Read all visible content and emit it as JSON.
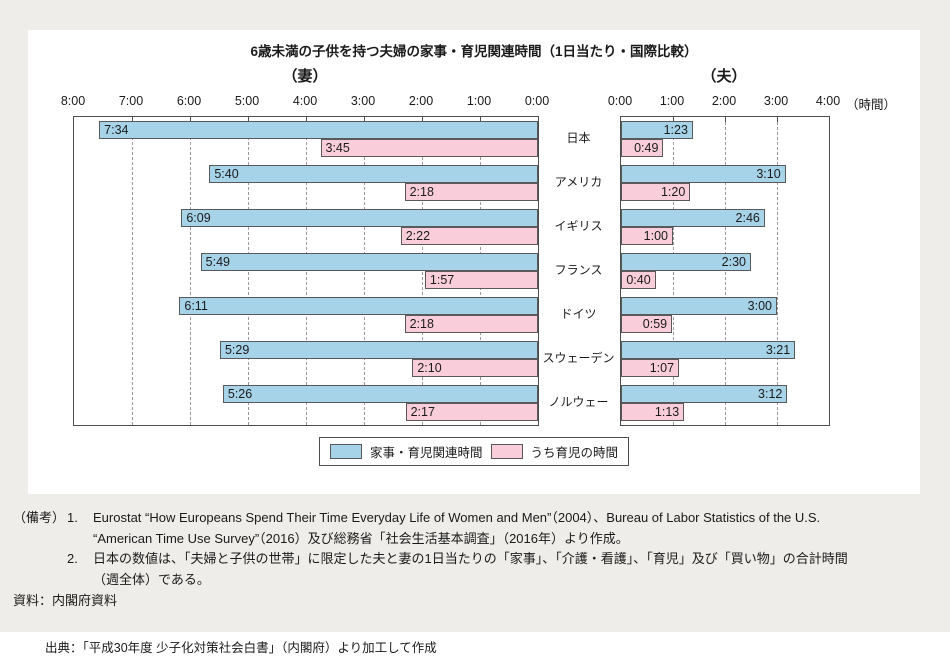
{
  "chart_data": {
    "type": "bar",
    "orientation": "horizontal",
    "title": "6歳未満の子供を持つ夫婦の家事・育児関連時間（1日当たり・国際比較）",
    "categories": [
      "日本",
      "アメリカ",
      "イギリス",
      "フランス",
      "ドイツ",
      "スウェーデン",
      "ノルウェー"
    ],
    "unit_note": "（時間）",
    "legend": [
      {
        "name": "家事・育児関連時間",
        "color": "#A7D3E9"
      },
      {
        "name": "うち育児の時間",
        "color": "#F9CEDA"
      }
    ],
    "legend_position": "bottom-center",
    "grid": "dashed-vertical-hour-lines",
    "panels": [
      {
        "id": "wife",
        "label": "（妻）",
        "direction": "right-to-left",
        "axis_ticks": [
          "8:00",
          "7:00",
          "6:00",
          "5:00",
          "4:00",
          "3:00",
          "2:00",
          "1:00",
          "0:00"
        ],
        "axis_max_hours": 8,
        "series": [
          {
            "name": "家事・育児関連時間",
            "values": [
              "7:34",
              "5:40",
              "6:09",
              "5:49",
              "6:11",
              "5:29",
              "5:26"
            ]
          },
          {
            "name": "うち育児の時間",
            "values": [
              "3:45",
              "2:18",
              "2:22",
              "1:57",
              "2:18",
              "2:10",
              "2:17"
            ]
          }
        ]
      },
      {
        "id": "husband",
        "label": "（夫）",
        "direction": "left-to-right",
        "axis_ticks": [
          "0:00",
          "1:00",
          "2:00",
          "3:00",
          "4:00"
        ],
        "axis_max_hours": 4,
        "series": [
          {
            "name": "家事・育児関連時間",
            "values": [
              "1:23",
              "3:10",
              "2:46",
              "2:30",
              "3:00",
              "3:21",
              "3:12"
            ]
          },
          {
            "name": "うち育児の時間",
            "values": [
              "0:49",
              "1:20",
              "1:00",
              "0:40",
              "0:59",
              "1:07",
              "1:13"
            ]
          }
        ]
      }
    ]
  },
  "colors": {
    "total_bar": "#A7D3E9",
    "childcare_bar": "#F9CEDA",
    "bar_border": "#595959",
    "plot_border": "#4D4D4D",
    "page_background": "#EFEDE9",
    "card_background": "#FFFFFF"
  },
  "notes": {
    "prefix": "（備考）",
    "items": [
      {
        "num": "1.",
        "lines": [
          "Eurostat “How Europeans Spend Their Time Everyday Life of Women and Men”（2004）、Bureau of Labor Statistics of the U.S.",
          "“American Time Use Survey”（2016）及び総務省「社会生活基本調査」（2016年）より作成。"
        ]
      },
      {
        "num": "2.",
        "lines": [
          "日本の数値は、「夫婦と子供の世帯」に限定した夫と妻の1日当たりの「家事」、「介護・看護」、「育児」及び「買い物」の合計時間",
          "（週全体）である。"
        ]
      }
    ],
    "source": "資料：内閣府資料"
  },
  "footer": {
    "source_line": "出典：「平成30年度 少子化対策社会白書」（内閣府）より加工して作成"
  }
}
